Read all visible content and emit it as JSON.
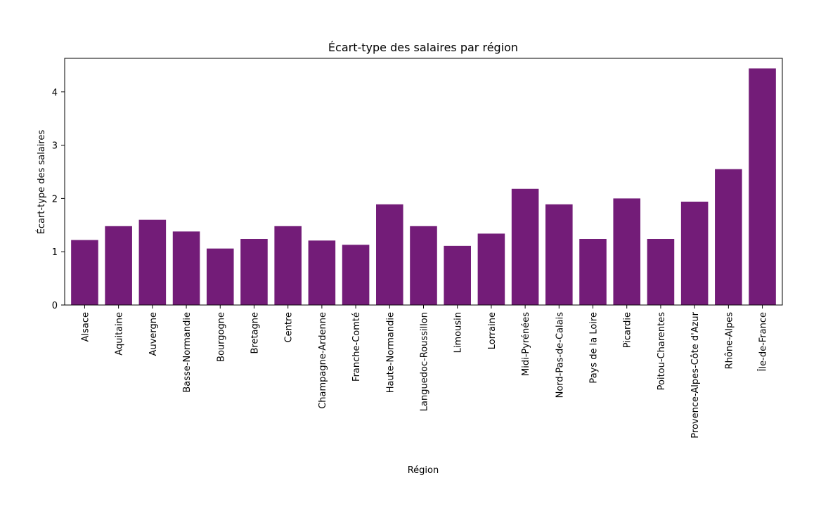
{
  "chart_data": {
    "type": "bar",
    "title": "Écart-type des salaires par région",
    "xlabel": "Région",
    "ylabel": "Écart-type des salaires",
    "categories": [
      "Alsace",
      "Aquitaine",
      "Auvergne",
      "Basse-Normandie",
      "Bourgogne",
      "Bretagne",
      "Centre",
      "Champagne-Ardenne",
      "Franche-Comté",
      "Haute-Normandie",
      "Languedoc-Roussillon",
      "Limousin",
      "Lorraine",
      "Midi-Pyrénées",
      "Nord-Pas-de-Calais",
      "Pays de la Loire",
      "Picardie",
      "Poitou-Charentes",
      "Provence-Alpes-Côte d'Azur",
      "Rhône-Alpes",
      "Île-de-France"
    ],
    "values": [
      1.22,
      1.48,
      1.6,
      1.38,
      1.06,
      1.24,
      1.48,
      1.21,
      1.13,
      1.89,
      1.48,
      1.11,
      1.34,
      2.18,
      1.89,
      1.24,
      2.0,
      1.24,
      1.94,
      2.55,
      4.44
    ],
    "ylim": [
      0,
      4.63
    ],
    "yticks": [
      0,
      1,
      2,
      3,
      4
    ],
    "bar_color": "#731c78",
    "grid": false
  }
}
